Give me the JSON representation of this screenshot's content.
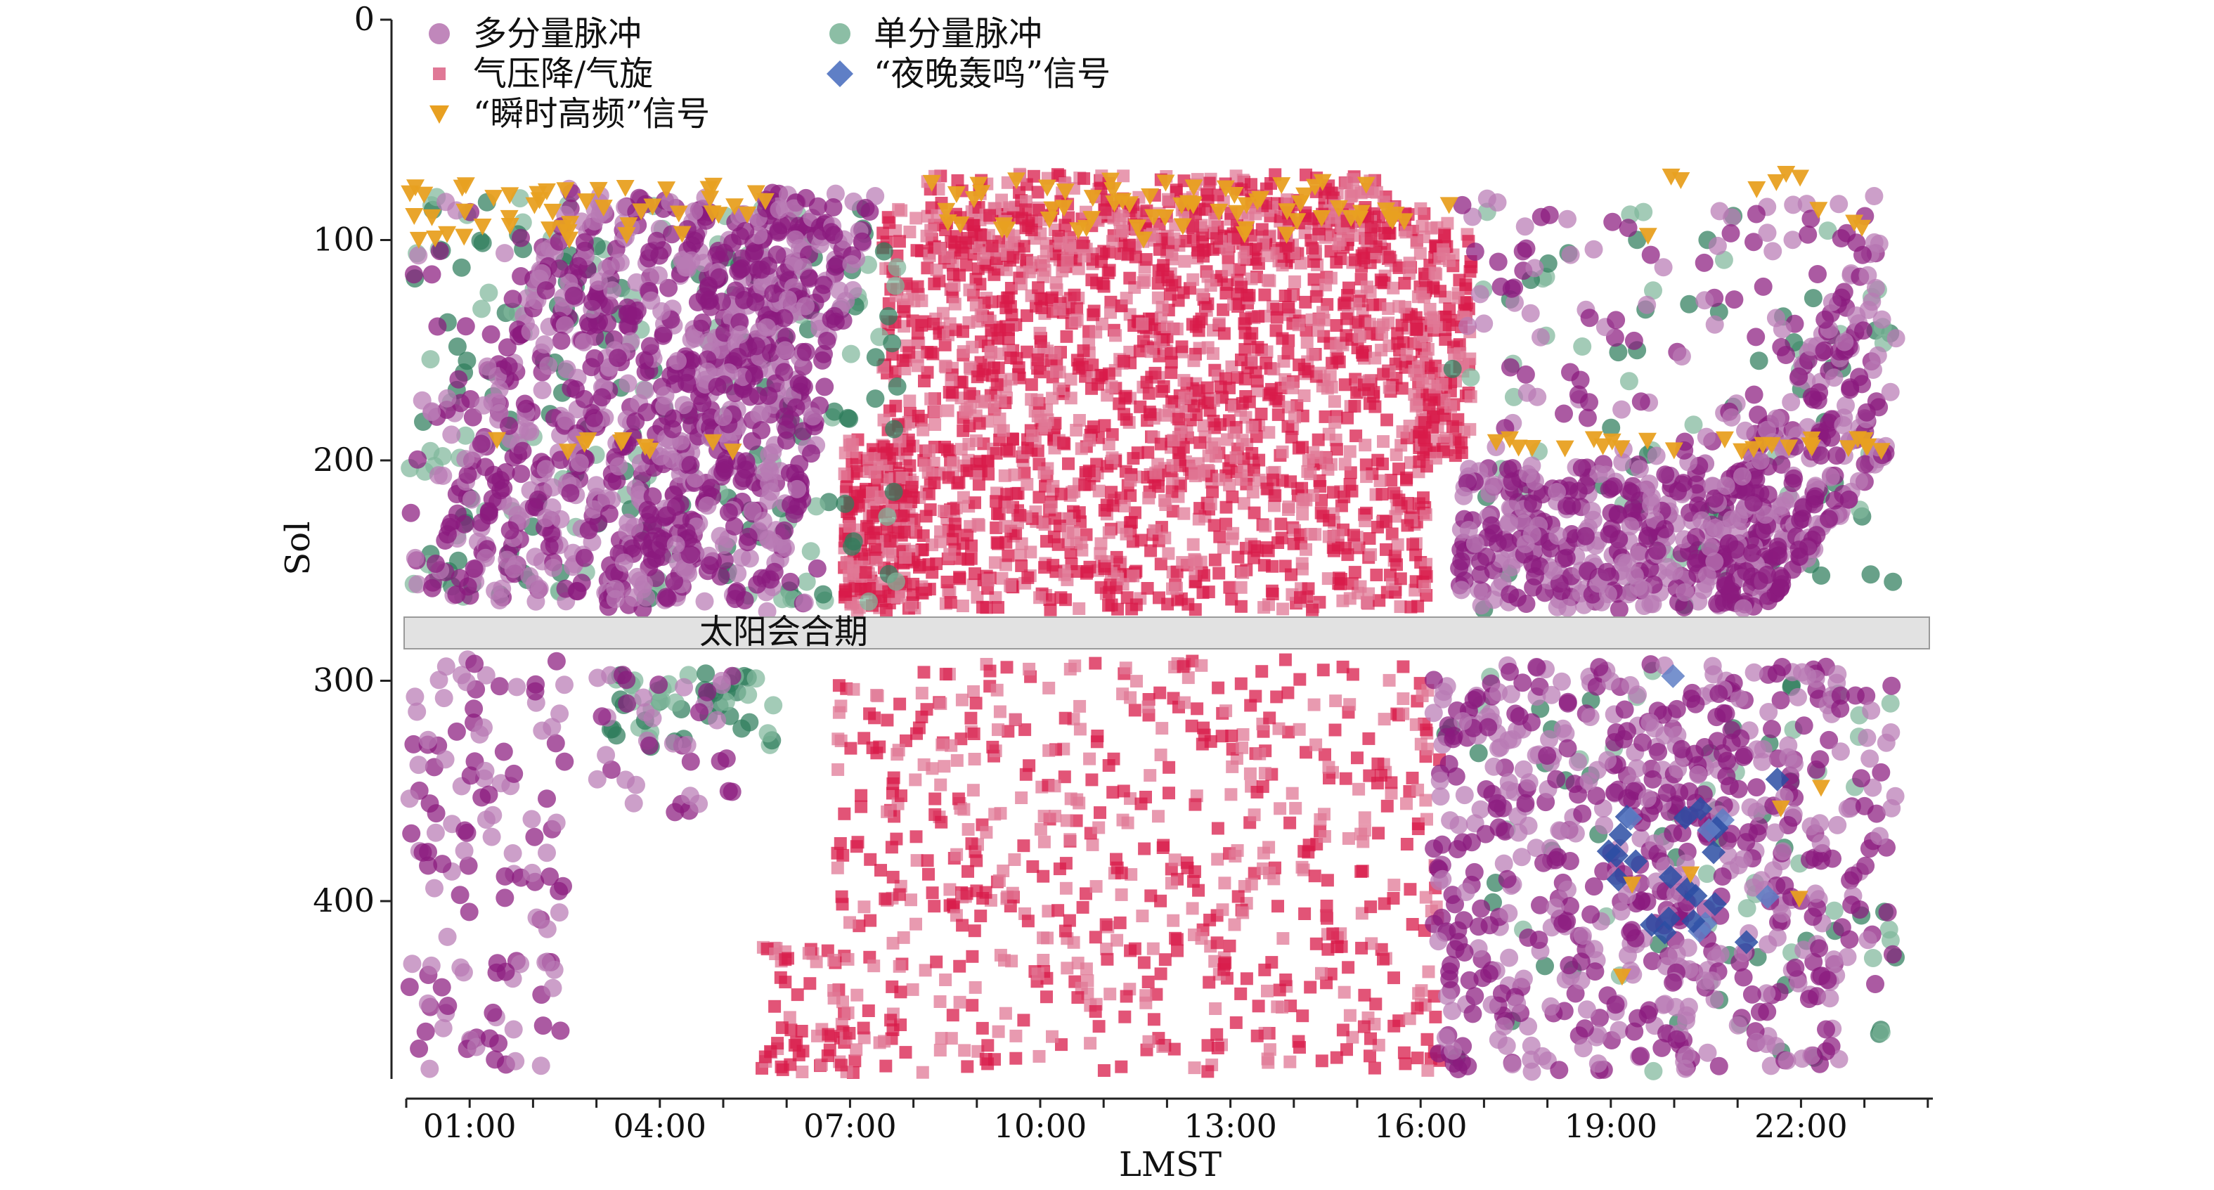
{
  "chart_data": {
    "type": "scatter",
    "xlabel": "LMST",
    "ylabel": "Sol",
    "x_ticks": [
      "01:00",
      "04:00",
      "07:00",
      "10:00",
      "13:00",
      "16:00",
      "19:00",
      "22:00"
    ],
    "y_ticks": [
      "0",
      "100",
      "200",
      "300",
      "400"
    ],
    "xlim_hours": [
      0,
      24
    ],
    "ylim_sol": [
      0,
      480
    ],
    "y_inverted": true,
    "legend_position": "top-left",
    "band": {
      "label": "太阳会合期",
      "sol_range": [
        270,
        285
      ]
    },
    "series": [
      {
        "name": "多分量脉冲",
        "marker": "circle",
        "color": "#8b1a7e",
        "light_color": "#b97ab4"
      },
      {
        "name": "单分量脉冲",
        "marker": "circle",
        "color": "#2e7d5b",
        "light_color": "#7fb79b"
      },
      {
        "name": "气压降/气旋",
        "marker": "square",
        "color": "#d81b4a",
        "light_color": "#e07896"
      },
      {
        "name": "“夜晚轰鸣”信号",
        "marker": "diamond",
        "color": "#2c4ea3",
        "light_color": "#5f7fc6"
      },
      {
        "name": "“瞬时高频”信号",
        "marker": "triangle-down",
        "color": "#e8a021",
        "light_color": "#e8a021"
      }
    ]
  }
}
